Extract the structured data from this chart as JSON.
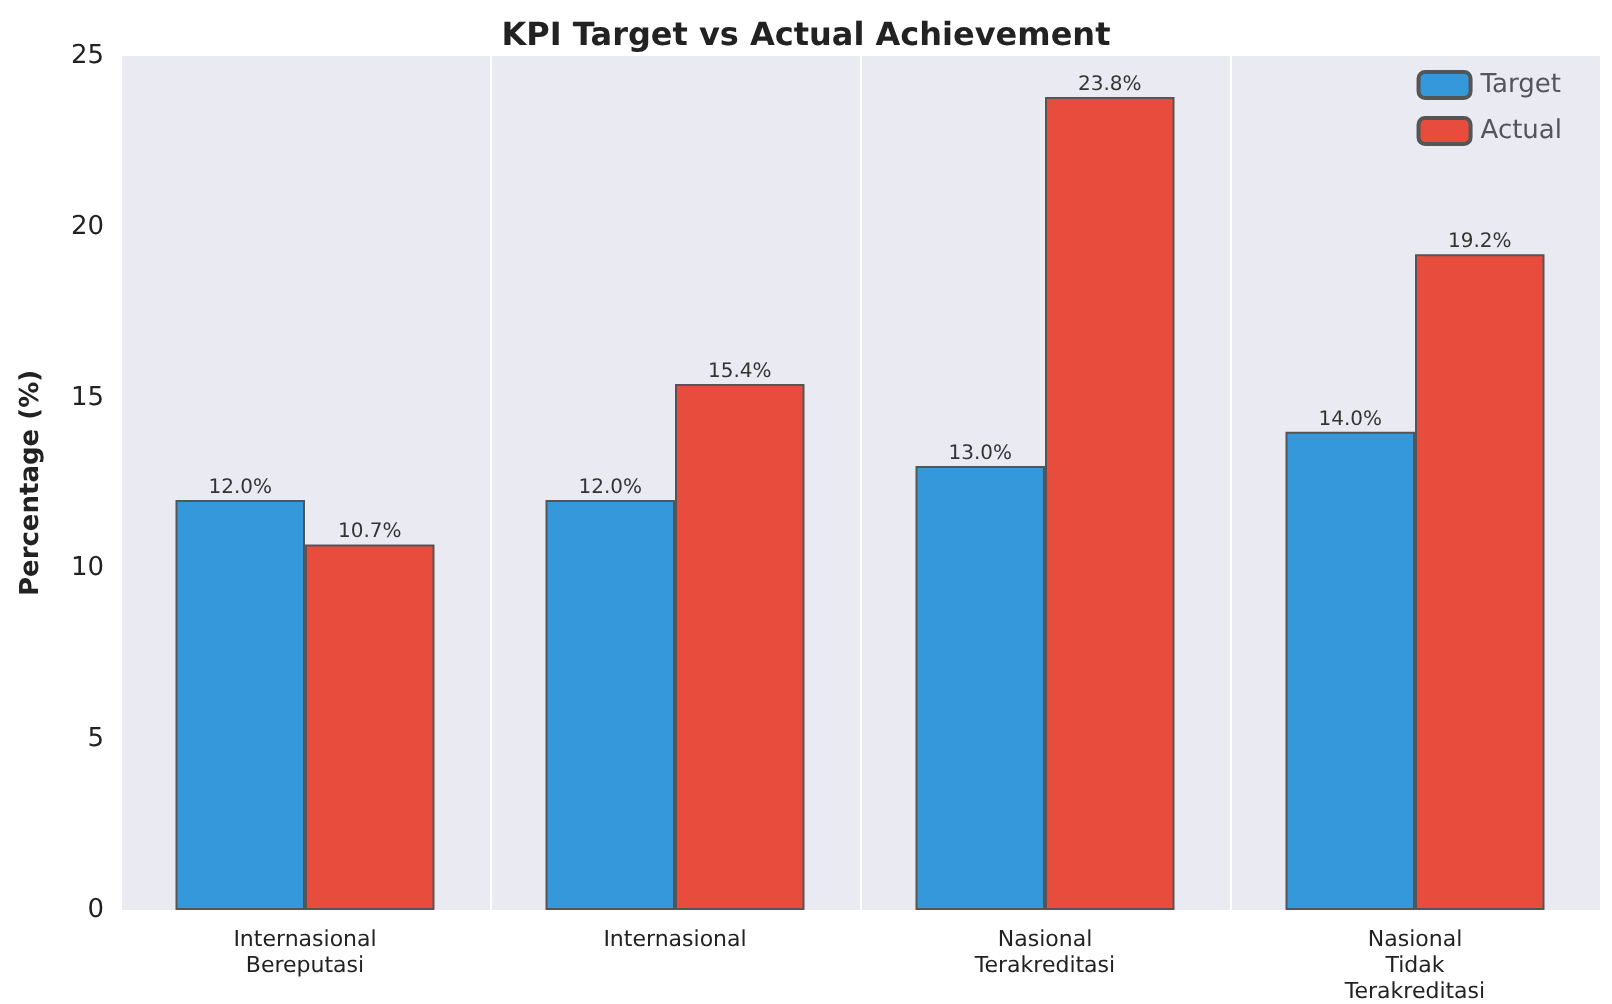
{
  "chart_data": {
    "type": "bar",
    "title": "KPI Target vs Actual Achievement",
    "ylabel": "Percentage (%)",
    "categories": [
      "Internasional\nBereputasi",
      "Internasional",
      "Nasional\nTerakreditasi",
      "Nasional\nTidak\nTerakreditasi"
    ],
    "series": [
      {
        "name": "Target",
        "color": "#3498db",
        "values": [
          12.0,
          12.0,
          13.0,
          14.0
        ],
        "value_labels": [
          "12.0%",
          "12.0%",
          "13.0%",
          "14.0%"
        ]
      },
      {
        "name": "Actual",
        "color": "#e74c3c",
        "values": [
          10.7,
          15.4,
          23.8,
          19.2
        ],
        "value_labels": [
          "10.7%",
          "15.4%",
          "23.8%",
          "19.2%"
        ]
      }
    ],
    "ylim": [
      0,
      25
    ],
    "yticks": [
      0,
      5,
      10,
      15,
      20,
      25
    ],
    "grid": "x",
    "legend": "top right"
  }
}
